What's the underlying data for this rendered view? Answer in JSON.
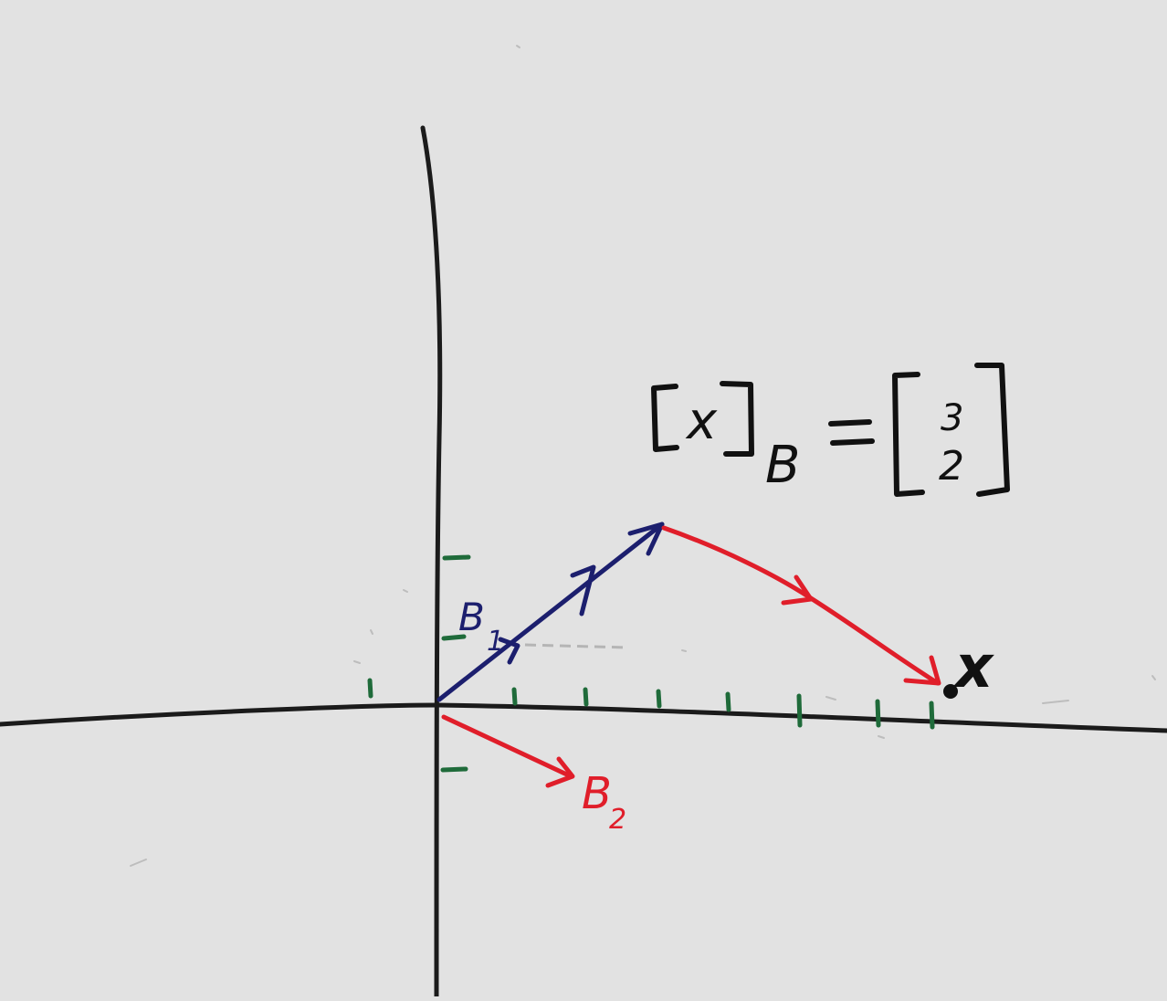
{
  "diagram": {
    "equation": {
      "lhs_vector": "x",
      "lhs_subscript": "B",
      "equals": "=",
      "coefficients": [
        "3",
        "2"
      ]
    },
    "basis_vectors": [
      {
        "label": "B",
        "subscript": "1",
        "color": "#1c1f6e"
      },
      {
        "label": "B",
        "subscript": "2",
        "color": "#e01e2a"
      }
    ],
    "target_point": {
      "label": "x",
      "color": "#111111"
    },
    "colors": {
      "background": "#e2e2e2",
      "axes": "#1b1b1b",
      "ticks": "#1f6b3a",
      "basis_1": "#1c1f6e",
      "basis_2": "#e01e2a",
      "point": "#111111"
    }
  }
}
